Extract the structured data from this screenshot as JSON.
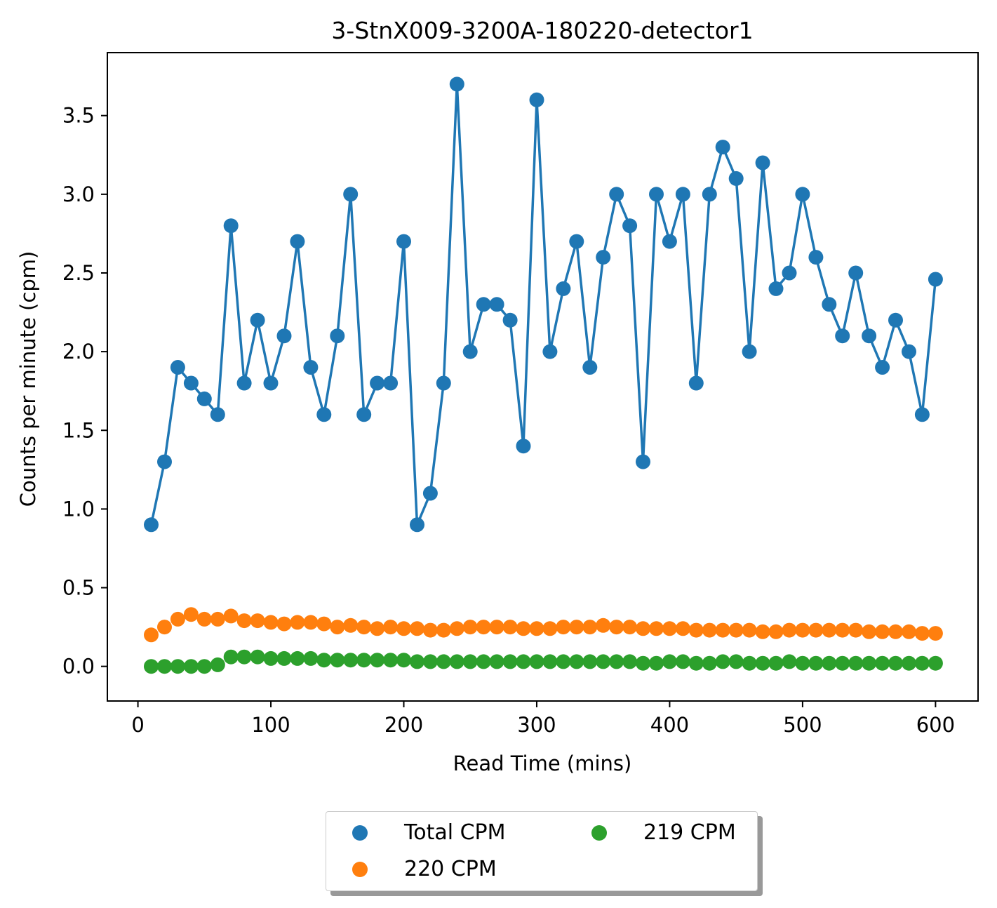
{
  "chart_data": {
    "type": "line",
    "title": "3-StnX009-3200A-180220-detector1",
    "xlabel": "Read Time (mins)",
    "ylabel": "Counts per minute (cpm)",
    "xlim": [
      -23,
      632
    ],
    "ylim": [
      -0.22,
      3.9
    ],
    "x_ticks": [
      0,
      100,
      200,
      300,
      400,
      500,
      600
    ],
    "x_tick_labels": [
      "0",
      "100",
      "200",
      "300",
      "400",
      "500",
      "600"
    ],
    "y_ticks": [
      0.0,
      0.5,
      1.0,
      1.5,
      2.0,
      2.5,
      3.0,
      3.5
    ],
    "y_tick_labels": [
      "0.0",
      "0.5",
      "1.0",
      "1.5",
      "2.0",
      "2.5",
      "3.0",
      "3.5"
    ],
    "grid": false,
    "legend_position": "bottom-center",
    "x": [
      10,
      20,
      30,
      40,
      50,
      60,
      70,
      80,
      90,
      100,
      110,
      120,
      130,
      140,
      150,
      160,
      170,
      180,
      190,
      200,
      210,
      220,
      230,
      240,
      250,
      260,
      270,
      280,
      290,
      300,
      310,
      320,
      330,
      340,
      350,
      360,
      370,
      380,
      390,
      400,
      410,
      420,
      430,
      440,
      450,
      460,
      470,
      480,
      490,
      500,
      510,
      520,
      530,
      540,
      550,
      560,
      570,
      580,
      590,
      600
    ],
    "series": [
      {
        "name": "Total CPM",
        "color": "#1f77b4",
        "line": true,
        "values": [
          0.9,
          1.3,
          1.9,
          1.8,
          1.7,
          1.6,
          2.8,
          1.8,
          2.2,
          1.8,
          2.1,
          2.7,
          1.9,
          1.6,
          2.1,
          3.0,
          1.6,
          1.8,
          1.8,
          2.7,
          0.9,
          1.1,
          1.8,
          3.7,
          2.0,
          2.3,
          2.3,
          2.2,
          1.4,
          3.6,
          2.0,
          2.4,
          2.7,
          1.9,
          2.6,
          3.0,
          2.8,
          1.3,
          3.0,
          2.7,
          3.0,
          1.8,
          3.0,
          3.3,
          3.1,
          2.0,
          3.2,
          2.4,
          2.5,
          3.0,
          2.6,
          2.3,
          2.1,
          2.5,
          2.1,
          1.9,
          2.2,
          2.0,
          1.6,
          2.46
        ]
      },
      {
        "name": "220 CPM",
        "color": "#ff7f0e",
        "line": false,
        "values": [
          0.2,
          0.25,
          0.3,
          0.33,
          0.3,
          0.3,
          0.32,
          0.29,
          0.29,
          0.28,
          0.27,
          0.28,
          0.28,
          0.27,
          0.25,
          0.26,
          0.25,
          0.24,
          0.25,
          0.24,
          0.24,
          0.23,
          0.23,
          0.24,
          0.25,
          0.25,
          0.25,
          0.25,
          0.24,
          0.24,
          0.24,
          0.25,
          0.25,
          0.25,
          0.26,
          0.25,
          0.25,
          0.24,
          0.24,
          0.24,
          0.24,
          0.23,
          0.23,
          0.23,
          0.23,
          0.23,
          0.22,
          0.22,
          0.23,
          0.23,
          0.23,
          0.23,
          0.23,
          0.23,
          0.22,
          0.22,
          0.22,
          0.22,
          0.21,
          0.21
        ]
      },
      {
        "name": "219 CPM",
        "color": "#2ca02c",
        "line": false,
        "values": [
          0.0,
          0.0,
          0.0,
          0.0,
          0.0,
          0.01,
          0.06,
          0.06,
          0.06,
          0.05,
          0.05,
          0.05,
          0.05,
          0.04,
          0.04,
          0.04,
          0.04,
          0.04,
          0.04,
          0.04,
          0.03,
          0.03,
          0.03,
          0.03,
          0.03,
          0.03,
          0.03,
          0.03,
          0.03,
          0.03,
          0.03,
          0.03,
          0.03,
          0.03,
          0.03,
          0.03,
          0.03,
          0.02,
          0.02,
          0.03,
          0.03,
          0.02,
          0.02,
          0.03,
          0.03,
          0.02,
          0.02,
          0.02,
          0.03,
          0.02,
          0.02,
          0.02,
          0.02,
          0.02,
          0.02,
          0.02,
          0.02,
          0.02,
          0.02,
          0.02
        ]
      }
    ]
  }
}
